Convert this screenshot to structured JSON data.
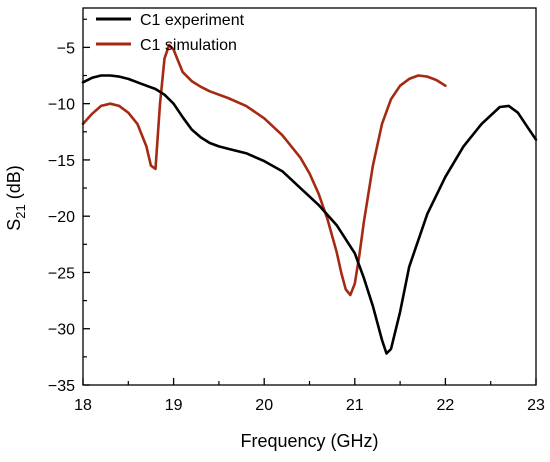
{
  "chart_data": {
    "type": "line",
    "xlabel": "Frequency (GHz)",
    "ylabel": {
      "base": "S",
      "sub": "21",
      "rest": " (dB)"
    },
    "xlim": [
      18,
      23
    ],
    "ylim": [
      -35,
      -1.5
    ],
    "xticks": [
      18,
      19,
      20,
      21,
      22,
      23
    ],
    "yticks": [
      -35,
      -30,
      -25,
      -20,
      -15,
      -10,
      -5
    ],
    "xtick_labels": [
      "18",
      "19",
      "20",
      "21",
      "22",
      "23"
    ],
    "ytick_labels": [
      "−35",
      "−30",
      "−25",
      "−20",
      "−15",
      "−10",
      "−5"
    ],
    "grid": false,
    "legend_position": "top-left",
    "series": [
      {
        "name": "C1 experiment",
        "color": "#000000",
        "x": [
          18.0,
          18.1,
          18.2,
          18.3,
          18.4,
          18.5,
          18.6,
          18.7,
          18.8,
          18.9,
          19.0,
          19.1,
          19.2,
          19.3,
          19.4,
          19.5,
          19.6,
          19.8,
          20.0,
          20.2,
          20.4,
          20.6,
          20.8,
          21.0,
          21.1,
          21.2,
          21.3,
          21.35,
          21.4,
          21.5,
          21.6,
          21.8,
          22.0,
          22.2,
          22.4,
          22.6,
          22.7,
          22.8,
          22.9,
          23.0
        ],
        "y": [
          -8.1,
          -7.7,
          -7.5,
          -7.5,
          -7.6,
          -7.8,
          -8.1,
          -8.4,
          -8.7,
          -9.2,
          -10.0,
          -11.2,
          -12.3,
          -13.0,
          -13.5,
          -13.8,
          -14.0,
          -14.4,
          -15.1,
          -16.0,
          -17.5,
          -19.0,
          -20.8,
          -23.3,
          -25.5,
          -28.0,
          -31.0,
          -32.2,
          -31.8,
          -28.5,
          -24.5,
          -19.8,
          -16.5,
          -13.8,
          -11.8,
          -10.3,
          -10.2,
          -10.8,
          -12.0,
          -13.2
        ]
      },
      {
        "name": "C1 simulation",
        "color": "#a52a14",
        "x": [
          18.0,
          18.1,
          18.2,
          18.3,
          18.4,
          18.5,
          18.6,
          18.7,
          18.75,
          18.8,
          18.85,
          18.9,
          18.95,
          19.0,
          19.05,
          19.1,
          19.2,
          19.3,
          19.4,
          19.6,
          19.8,
          20.0,
          20.2,
          20.4,
          20.5,
          20.6,
          20.7,
          20.8,
          20.85,
          20.9,
          20.95,
          21.0,
          21.05,
          21.1,
          21.2,
          21.3,
          21.4,
          21.5,
          21.6,
          21.7,
          21.8,
          21.9,
          22.0
        ],
        "y": [
          -11.8,
          -10.9,
          -10.2,
          -10.0,
          -10.2,
          -10.8,
          -11.8,
          -13.8,
          -15.5,
          -15.8,
          -10.0,
          -6.0,
          -4.8,
          -5.2,
          -6.2,
          -7.2,
          -8.0,
          -8.5,
          -8.9,
          -9.5,
          -10.2,
          -11.3,
          -12.8,
          -14.8,
          -16.2,
          -18.0,
          -20.3,
          -23.2,
          -25.0,
          -26.5,
          -27.0,
          -26.0,
          -23.5,
          -20.5,
          -15.5,
          -11.8,
          -9.6,
          -8.4,
          -7.8,
          -7.5,
          -7.6,
          -7.9,
          -8.4
        ]
      }
    ]
  }
}
